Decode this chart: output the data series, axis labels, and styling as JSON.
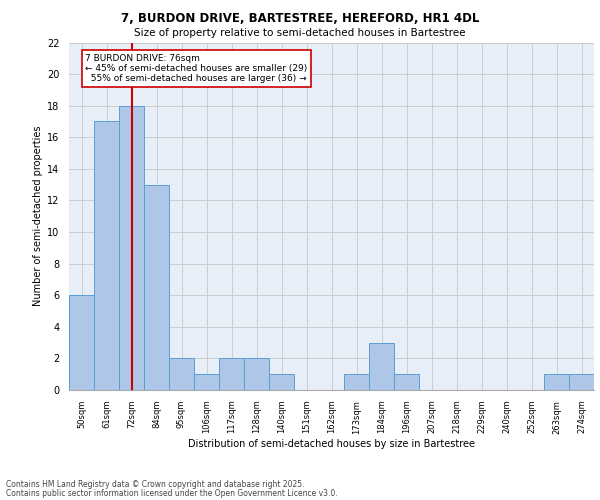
{
  "title1": "7, BURDON DRIVE, BARTESTREE, HEREFORD, HR1 4DL",
  "title2": "Size of property relative to semi-detached houses in Bartestree",
  "xlabel": "Distribution of semi-detached houses by size in Bartestree",
  "ylabel": "Number of semi-detached properties",
  "categories": [
    "50sqm",
    "61sqm",
    "72sqm",
    "84sqm",
    "95sqm",
    "106sqm",
    "117sqm",
    "128sqm",
    "140sqm",
    "151sqm",
    "162sqm",
    "173sqm",
    "184sqm",
    "196sqm",
    "207sqm",
    "218sqm",
    "229sqm",
    "240sqm",
    "252sqm",
    "263sqm",
    "274sqm"
  ],
  "values": [
    6,
    17,
    18,
    13,
    2,
    1,
    2,
    2,
    1,
    0,
    0,
    1,
    3,
    1,
    0,
    0,
    0,
    0,
    0,
    1,
    1
  ],
  "bar_color": "#aec6e8",
  "bar_edge_color": "#5a9fd4",
  "vline_x": 2,
  "vline_color": "#cc0000",
  "annotation_text": "7 BURDON DRIVE: 76sqm\n← 45% of semi-detached houses are smaller (29)\n  55% of semi-detached houses are larger (36) →",
  "annotation_box_color": "#ffffff",
  "annotation_box_edge_color": "#cc0000",
  "ylim": [
    0,
    22
  ],
  "yticks": [
    0,
    2,
    4,
    6,
    8,
    10,
    12,
    14,
    16,
    18,
    20,
    22
  ],
  "grid_color": "#cccccc",
  "background_color": "#e8eef8",
  "footer1": "Contains HM Land Registry data © Crown copyright and database right 2025.",
  "footer2": "Contains public sector information licensed under the Open Government Licence v3.0."
}
